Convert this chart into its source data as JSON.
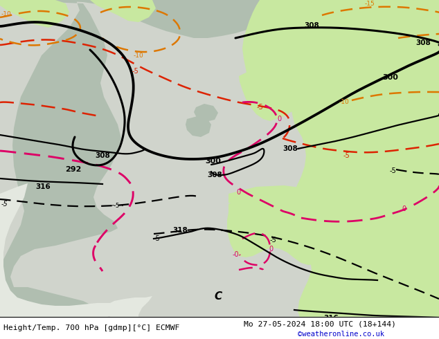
{
  "title_left": "Height/Temp. 700 hPa [gdmp][°C] ECMWF",
  "title_right": "Mo 27-05-2024 18:00 UTC (18+144)",
  "credit": "©weatheronline.co.uk",
  "figsize": [
    6.34,
    4.9
  ],
  "dpi": 100,
  "bg_light_green": "#c8e8a8",
  "bg_gray": "#a8b4a8",
  "bg_white": "#e0e8e0",
  "black_lw": 2.2,
  "black_thin_lw": 1.6,
  "temp_lw": 1.8,
  "colors": {
    "black": "#000000",
    "red": "#dd2200",
    "pink": "#dd0066",
    "orange": "#dd7700"
  }
}
